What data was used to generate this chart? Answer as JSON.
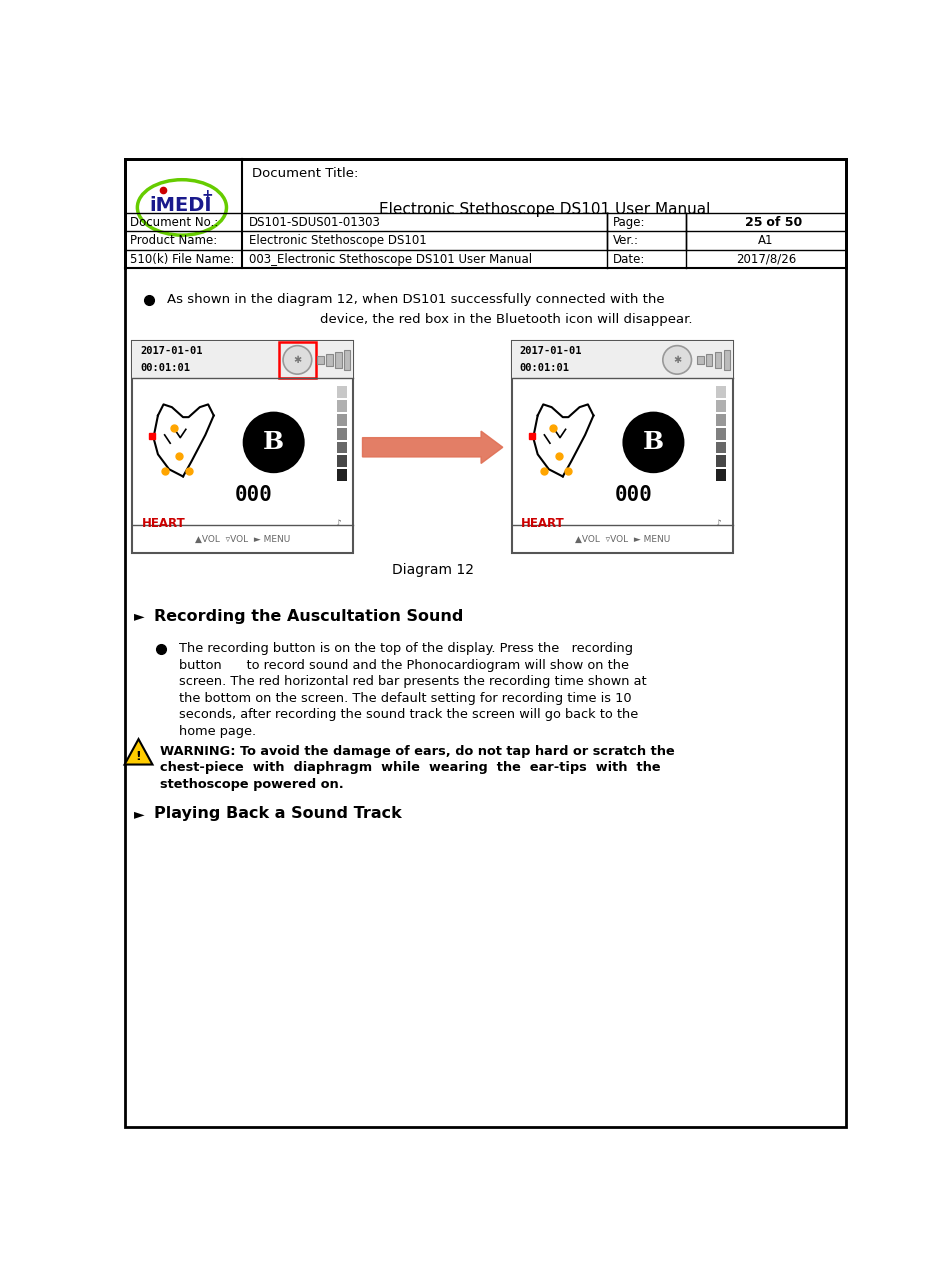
{
  "page_width": 9.47,
  "page_height": 12.73,
  "bg_color": "#ffffff",
  "header": {
    "doc_title_label": "Document Title:",
    "doc_title": "Electronic Stethoscope DS101 User Manual",
    "rows": [
      {
        "label": "Document No.:",
        "value": "DS101-SDUS01-01303",
        "right_label": "Page:",
        "right_value": "25 of 50"
      },
      {
        "label": "Product Name:",
        "value": "Electronic Stethoscope DS101",
        "right_label": "Ver.:",
        "right_value": "A1"
      },
      {
        "label": "510(k) File Name:",
        "value": "003_Electronic Stethoscope DS101 User Manual",
        "right_label": "Date:",
        "right_value": "2017/8/26"
      }
    ]
  },
  "bullet_line1": "As shown in the diagram 12, when DS101 successfully connected with the",
  "bullet_line2": "device, the red box in the Bluetooth icon will disappear.",
  "diagram_label": "Diagram 12",
  "section1_title": "Recording the Auscultation Sound",
  "section1_lines": [
    "The recording button is on the top of the display. Press the   recording",
    "button      to record sound and the Phonocardiogram will show on the",
    "screen. The red horizontal red bar presents the recording time shown at",
    "the bottom on the screen. The default setting for recording time is 10",
    "seconds, after recording the sound track the screen will go back to the",
    "home page."
  ],
  "warning_lines": [
    "WARNING: To avoid the damage of ears, do not tap hard or scratch the",
    "chest-piece  with  diaphragm  while  wearing  the  ear-tips  with  the",
    "stethoscope powered on."
  ],
  "section2_title": "Playing Back a Sound Track",
  "colors": {
    "red": "#ff0000",
    "orange": "#ffa500",
    "arrow_color": "#e07055",
    "heart_red": "#cc0000",
    "black": "#000000",
    "white": "#ffffff",
    "logo_green": "#66cc00",
    "logo_red": "#cc0000",
    "logo_blue": "#1a1a8c",
    "warning_yellow": "#ffcc00",
    "screen_border": "#555555",
    "bt_gray": "#aaaaaa",
    "bar_gray1": "#cccccc",
    "bar_gray2": "#aaaaaa",
    "bar_gray3": "#888888",
    "bar_gray4": "#666666",
    "bar_gray5": "#555555",
    "bar_gray6": "#444444",
    "bar_gray7": "#222222"
  }
}
